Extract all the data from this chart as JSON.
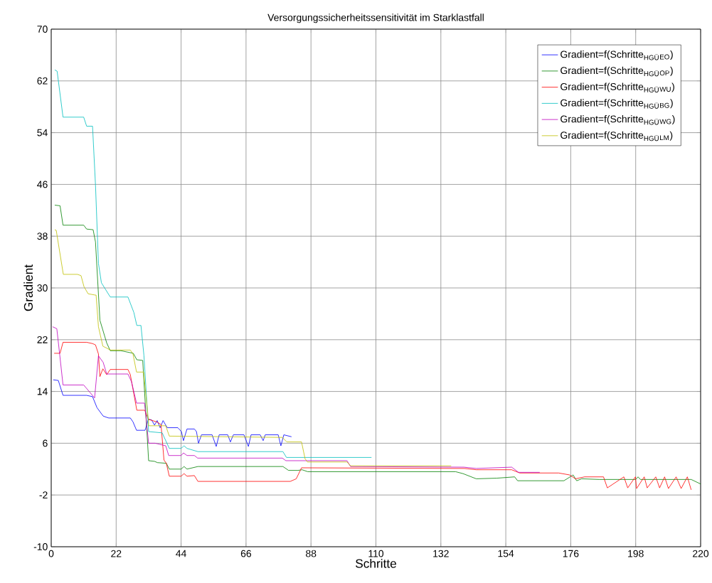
{
  "chart_data": {
    "type": "line",
    "title": "Versorgungssicherheitssensitivität im Starklastfall",
    "xlabel": "Schritte",
    "ylabel": "Gradient",
    "xlim": [
      0,
      220
    ],
    "ylim": [
      -10,
      70
    ],
    "xticks": [
      0,
      22,
      44,
      66,
      88,
      110,
      132,
      154,
      176,
      198,
      220
    ],
    "yticks": [
      -10,
      -2,
      6,
      14,
      22,
      30,
      38,
      46,
      54,
      62,
      70
    ],
    "grid": true,
    "legend": "top right",
    "marker": "none",
    "line_style": "solid",
    "series": [
      {
        "name": "Gradient=f(Schritte$_{HGÜ}$$_{EO}$)",
        "color": "#0000ff",
        "x": [
          0.7,
          2.4,
          4,
          12,
          14,
          15.5,
          17.6,
          18.8,
          19.5,
          26.8,
          27.7,
          28.9,
          31.8,
          32.9,
          34,
          35,
          35.9,
          36.9,
          37.9,
          39.3,
          42.9,
          44.1,
          44.8,
          46,
          48.5,
          49.2,
          49.9,
          50.9,
          54.5,
          55.9,
          56.9,
          59.8,
          60.7,
          61.7,
          65.3,
          66.8,
          67.7,
          70.8,
          71.8,
          72.5,
          76.9,
          77.8,
          78.8,
          81.4
        ],
        "values": [
          15.8,
          15.7,
          13.4,
          13.4,
          13.2,
          11.5,
          10.2,
          10.0,
          9.9,
          9.9,
          9.3,
          8.0,
          8.0,
          9.7,
          9.6,
          8.8,
          9.5,
          8.4,
          9.5,
          8.4,
          8.4,
          7.8,
          6.4,
          8.2,
          8.2,
          7.8,
          6.0,
          7.3,
          7.3,
          5.5,
          7.3,
          7.3,
          6.2,
          7.3,
          7.3,
          5.5,
          7.3,
          7.3,
          6.4,
          7.3,
          7.3,
          5.6,
          7.3,
          7.0
        ]
      },
      {
        "name": "Gradient=f(Schritte$_{HGÜ}$$_{OP}$)",
        "color": "#008000",
        "x": [
          1.2,
          3,
          4,
          11,
          12,
          14.2,
          15,
          16.5,
          18.8,
          20,
          23.6,
          27.8,
          29,
          31,
          33,
          35,
          36,
          39,
          40,
          44,
          45,
          46,
          49.7,
          78.5,
          80.4,
          83.6,
          85,
          86.9,
          137,
          139.5,
          144,
          151,
          157,
          158,
          173.7,
          176.8,
          178,
          179.7,
          185.7,
          198,
          198.8,
          199.6,
          216.8,
          220
        ],
        "values": [
          42.8,
          42.7,
          39.7,
          39.7,
          39.1,
          39.0,
          37.1,
          25,
          21.5,
          20.3,
          20.3,
          19.9,
          18.9,
          18.8,
          3.3,
          3.2,
          3.0,
          2.9,
          2.0,
          2.0,
          2.4,
          2.0,
          2.4,
          2.4,
          1.8,
          1.8,
          1.9,
          1.6,
          1.6,
          1.3,
          0.5,
          0.6,
          0.8,
          0.2,
          0.2,
          1.1,
          0.2,
          0.5,
          0.4,
          0.4,
          0.8,
          0.4,
          0.4,
          -0.3
        ]
      },
      {
        "name": "Gradient=f(Schritte$_{HGÜ}$$_{WU}$)",
        "color": "#ff0000",
        "x": [
          1.0,
          3,
          4,
          12,
          14,
          15,
          16,
          16.5,
          17.5,
          18.8,
          20,
          26,
          26.8,
          29,
          31.7,
          32.9,
          35.7,
          37.2,
          38.2,
          39,
          40,
          44,
          45,
          46,
          48.5,
          49.7,
          81,
          83,
          84.8,
          140,
          144,
          156,
          158.7,
          171.9,
          175.6,
          177.6,
          180.7,
          185.8,
          187.1,
          188.4,
          194.0,
          195.3,
          197.9,
          198.3,
          200.9,
          201.9,
          204.8,
          206.1,
          207.8,
          209.1,
          211.7,
          213.4,
          215.5,
          216.8
        ],
        "values": [
          19.9,
          19.9,
          21.6,
          21.6,
          21.4,
          21.2,
          19.8,
          16.3,
          17.5,
          16.6,
          17.4,
          17.4,
          16.6,
          11.1,
          11.1,
          9.7,
          9.3,
          8.9,
          3.4,
          2.9,
          0.9,
          0.9,
          1.3,
          0.9,
          1.0,
          0.1,
          0.1,
          0.5,
          2.2,
          2.1,
          1.9,
          1.9,
          1.4,
          1.4,
          1.1,
          0.5,
          0.8,
          0.8,
          0.8,
          -0.9,
          0.8,
          -0.9,
          0.8,
          -1.0,
          0.8,
          -0.9,
          0.8,
          -0.9,
          0.8,
          -1.0,
          0.8,
          -1.0,
          0.8,
          -1.2
        ]
      },
      {
        "name": "Gradient=f(Schritte$_{HGÜ}$$_{BG}$)",
        "color": "#00bfbf",
        "x": [
          1.2,
          2,
          4,
          11,
          12,
          14,
          15,
          16,
          17,
          20,
          26,
          28,
          29,
          30.4,
          31.4,
          33,
          37.6,
          40,
          44,
          45,
          46,
          49.7,
          78.5,
          79.7,
          86.5,
          108.5
        ],
        "values": [
          63.7,
          63.5,
          56.4,
          56.4,
          55,
          55,
          45.9,
          33.8,
          30.8,
          28.6,
          28.6,
          26.2,
          24.2,
          24.2,
          19.6,
          7.8,
          7.6,
          5.2,
          5.2,
          5.6,
          5.2,
          4.7,
          4.7,
          3.8,
          3.8,
          3.8
        ]
      },
      {
        "name": "Gradient=f(Schritte$_{HGÜ}$$_{WG}$)",
        "color": "#bf00bf",
        "x": [
          0.5,
          1.9,
          2.9,
          4,
          11,
          14.7,
          16,
          17.6,
          18.8,
          26,
          27.2,
          28.9,
          31.6,
          33,
          35.2,
          36.1,
          38.8,
          39.8,
          44,
          44.8,
          46,
          48.5,
          49.6,
          78.3,
          79.5,
          100.2,
          101.4,
          139.8,
          144,
          156,
          158.3,
          165.5
        ],
        "values": [
          24,
          23.7,
          19.6,
          15,
          15,
          13,
          19.5,
          18.5,
          16.7,
          16.7,
          15.5,
          12.2,
          12.2,
          6.0,
          6.0,
          5.9,
          5.6,
          4.1,
          4.1,
          4.5,
          4.1,
          4.1,
          3.7,
          3.7,
          3.3,
          3.3,
          2.4,
          2.3,
          2.1,
          2.3,
          1.5,
          1.5
        ]
      },
      {
        "name": "Gradient=f(Schritte$_{HGÜ}$$_{LM}$)",
        "color": "#bfbf00",
        "x": [
          1.2,
          1.7,
          4.1,
          8.9,
          10.1,
          11.1,
          12.5,
          14.9,
          15.2,
          16,
          17.5,
          18.8,
          20,
          26.8,
          27.7,
          28.9,
          31.3,
          32.9,
          33,
          38.8,
          40,
          78.3,
          79.8,
          84.8,
          86,
          86.8,
          100.2,
          101.4,
          135.5
        ],
        "values": [
          39.0,
          38.9,
          32.1,
          32.1,
          31.9,
          30.2,
          29.1,
          28.9,
          28.9,
          24,
          21,
          20.7,
          20.4,
          20.4,
          19.8,
          17.0,
          17.0,
          9.7,
          8.7,
          8.7,
          7.1,
          6.9,
          6.2,
          6.2,
          3.6,
          3.1,
          3.1,
          2.5,
          2.5
        ]
      }
    ]
  }
}
